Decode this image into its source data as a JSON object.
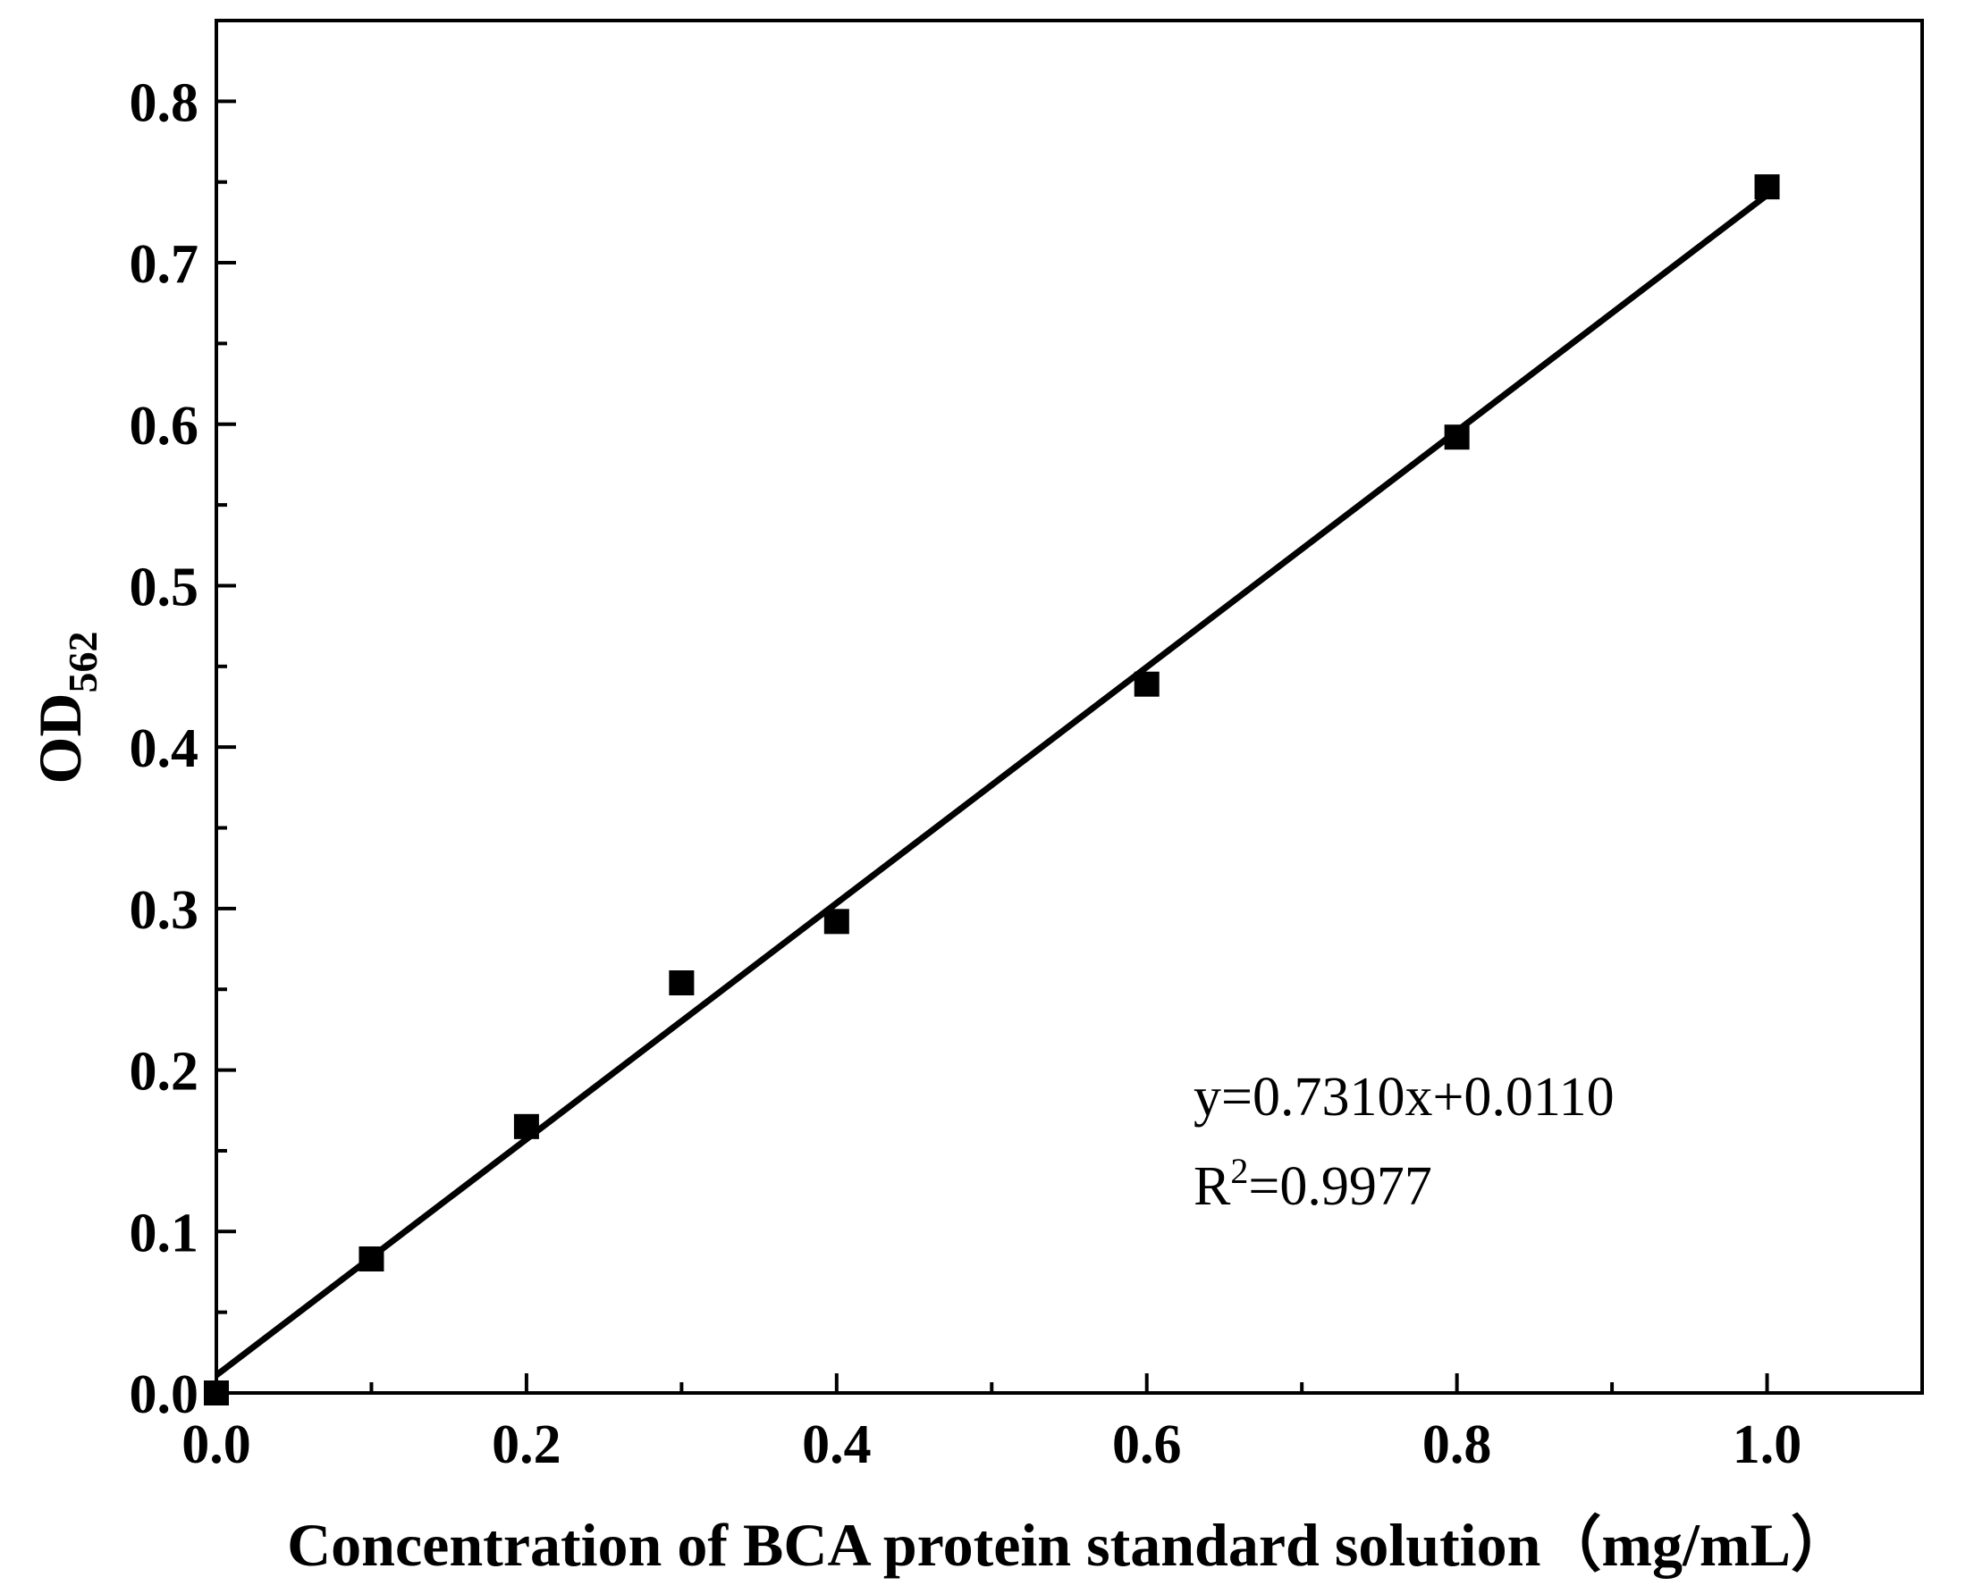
{
  "chart_data": {
    "type": "scatter",
    "xlabel": "Concentration of BCA protein standard solution（mg/mL）",
    "ylabel": "OD",
    "ylabel_subscript": "562",
    "xlim": [
      0,
      1.1
    ],
    "ylim": [
      0,
      0.85
    ],
    "x_ticks": [
      "0.0",
      "0.2",
      "0.4",
      "0.6",
      "0.8",
      "1.0"
    ],
    "y_ticks": [
      "0.0",
      "0.1",
      "0.2",
      "0.3",
      "0.4",
      "0.5",
      "0.6",
      "0.7",
      "0.8"
    ],
    "grid": false,
    "points": {
      "x": [
        0,
        0.1,
        0.2,
        0.3,
        0.4,
        0.6,
        0.8,
        1.0
      ],
      "y": [
        0,
        0.083,
        0.165,
        0.254,
        0.292,
        0.439,
        0.592,
        0.747
      ]
    },
    "fit": {
      "slope": 0.731,
      "intercept": 0.011,
      "x_range": [
        0,
        1.0
      ]
    },
    "annotation": {
      "equation": "y=0.7310x+0.0110",
      "r2_prefix": "R",
      "r2_sup": "2",
      "r2_value": "=0.9977"
    },
    "colors": {
      "marker": "#000000",
      "line": "#000000",
      "axis": "#000000"
    }
  }
}
